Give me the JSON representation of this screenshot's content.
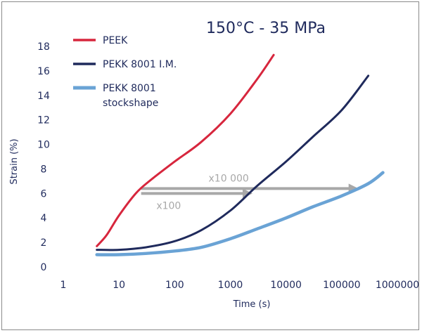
{
  "chart_data": {
    "type": "line",
    "title": "150°C - 35 MPa",
    "xlabel": "Time (s)",
    "ylabel": "Strain (%)",
    "xscale": "log",
    "xlim": [
      1,
      1000000
    ],
    "ylim": [
      0,
      18
    ],
    "x_ticks": [
      "1",
      "10",
      "100",
      "1000",
      "10000",
      "100000",
      "1000000"
    ],
    "y_ticks": [
      "0",
      "2",
      "4",
      "6",
      "8",
      "10",
      "12",
      "14",
      "16",
      "18"
    ],
    "grid": false,
    "legend_position": "top-left",
    "series": [
      {
        "name": "PEEK",
        "color": "#d7263d",
        "points": [
          [
            4,
            1.7
          ],
          [
            6,
            2.6
          ],
          [
            10,
            4.2
          ],
          [
            20,
            6.0
          ],
          [
            35,
            7.0
          ],
          [
            100,
            8.6
          ],
          [
            300,
            10.2
          ],
          [
            1000,
            12.5
          ],
          [
            3000,
            15.3
          ],
          [
            6000,
            17.3
          ]
        ]
      },
      {
        "name": "PEKK 8001 I.M.",
        "color": "#1f2a5c",
        "points": [
          [
            4,
            1.4
          ],
          [
            10,
            1.4
          ],
          [
            30,
            1.6
          ],
          [
            100,
            2.1
          ],
          [
            300,
            3.0
          ],
          [
            1000,
            4.6
          ],
          [
            3000,
            6.6
          ],
          [
            10000,
            8.6
          ],
          [
            30000,
            10.6
          ],
          [
            100000,
            12.8
          ],
          [
            300000,
            15.6
          ]
        ]
      },
      {
        "name": "PEKK 8001\nstockshape",
        "legend_lines": [
          "PEKK 8001",
          "stockshape"
        ],
        "color": "#6aa3d5",
        "points": [
          [
            4,
            1.0
          ],
          [
            10,
            1.0
          ],
          [
            30,
            1.1
          ],
          [
            100,
            1.3
          ],
          [
            300,
            1.6
          ],
          [
            1000,
            2.3
          ],
          [
            3000,
            3.1
          ],
          [
            10000,
            4.0
          ],
          [
            30000,
            4.9
          ],
          [
            100000,
            5.8
          ],
          [
            300000,
            6.8
          ],
          [
            550000,
            7.7
          ]
        ]
      }
    ],
    "annotations": [
      {
        "label": "x10 000",
        "color": "#a8a8a8",
        "y": 6.4,
        "x_from": 25,
        "x_to": 200000
      },
      {
        "label": "x100",
        "color": "#a8a8a8",
        "y": 6.0,
        "x_from": 25,
        "x_to": 2500
      }
    ]
  }
}
